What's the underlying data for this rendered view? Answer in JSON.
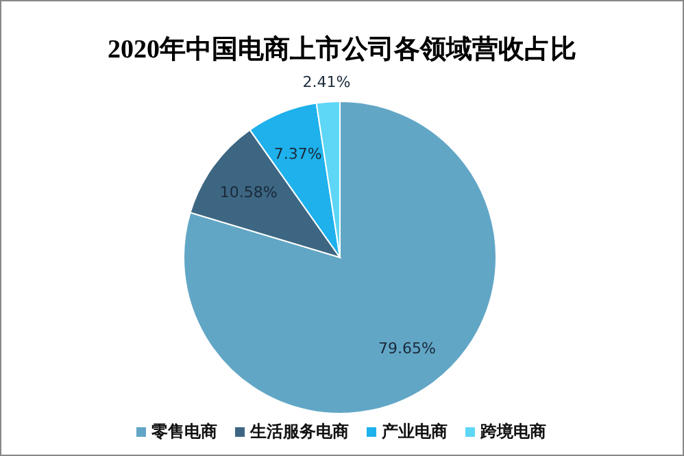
{
  "chart_data": {
    "type": "pie",
    "title": "2020年中国电商上市公司各领域营收占比",
    "categories": [
      "零售电商",
      "生活服务电商",
      "产业电商",
      "跨境电商"
    ],
    "values": [
      79.65,
      10.58,
      7.37,
      2.41
    ],
    "colors": [
      "#62a6c6",
      "#3d6682",
      "#1eb1ec",
      "#5ed6f6"
    ],
    "value_labels": [
      "79.65%",
      "10.58%",
      "7.37%",
      "2.41%"
    ],
    "legend": "bottom"
  }
}
